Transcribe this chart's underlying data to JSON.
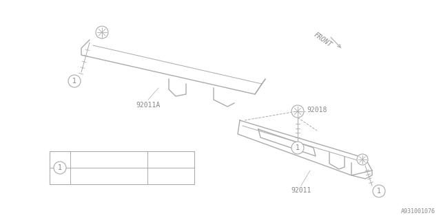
{
  "bg_color": "#ffffff",
  "line_color": "#aaaaaa",
  "text_color": "#888888",
  "diagram_id": "A931001076",
  "front_label": "FRONT"
}
